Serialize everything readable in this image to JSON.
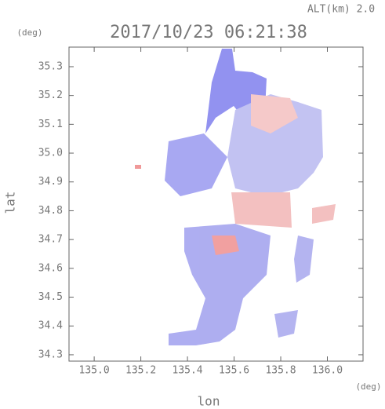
{
  "chart_data": {
    "type": "image-map",
    "title": "2017/10/23 06:21:38",
    "subtitle": "ALT(km) 2.0",
    "x_label": "lon",
    "y_label": "lat",
    "x_unit": "(deg)",
    "y_unit": "(deg)",
    "xlim": [
      134.892,
      136.153
    ],
    "xticks": [
      {
        "value": 135.0,
        "label": "135.0"
      },
      135.2,
      135.4,
      135.6,
      135.8,
      {
        "value": 136.0,
        "label": "136.0"
      }
    ],
    "ylim": [
      34.278,
      35.368
    ],
    "yticks": [
      34.3,
      34.4,
      34.5,
      34.6,
      34.7,
      34.8,
      34.9,
      {
        "value": 35.0,
        "label": "35.0"
      },
      35.1,
      35.2,
      35.3
    ]
  }
}
